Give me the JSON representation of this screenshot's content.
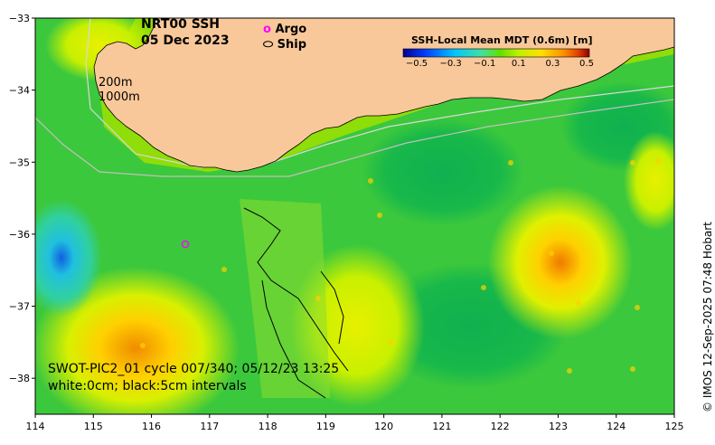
{
  "title": {
    "line1": "NRT00 SSH",
    "line2": "05 Dec 2023"
  },
  "legend": {
    "argo": {
      "symbol": "o",
      "label": "Argo",
      "color": "#ff00ff"
    },
    "ship": {
      "symbol": "⬭",
      "label": "Ship"
    }
  },
  "contour_labels": [
    "200m",
    "1000m"
  ],
  "colorbar": {
    "title": "SSH-Local Mean MDT (0.6m) [m]",
    "ticks": [
      "−0.5",
      "−0.3",
      "−0.1",
      "0.1",
      "0.3",
      "0.5"
    ],
    "colors": [
      "#000090",
      "#0040ff",
      "#00c8ff",
      "#40e0a0",
      "#60e000",
      "#c0f000",
      "#ffe000",
      "#ff9000",
      "#e04000",
      "#900000"
    ]
  },
  "swot_caption": {
    "line1": "SWOT-PIC2_01 cycle 007/340; 05/12/23 13:25",
    "line2": "white:0cm; black:5cm intervals"
  },
  "credit": "© IMOS 12-Sep-2025 07:48 Hobart",
  "axes": {
    "x_ticks": [
      "114",
      "115",
      "116",
      "117",
      "118",
      "119",
      "120",
      "121",
      "122",
      "123",
      "124",
      "125"
    ],
    "y_ticks": [
      "−33",
      "−34",
      "−35",
      "−36",
      "−37",
      "−38"
    ],
    "x_range": [
      114,
      125
    ],
    "y_range": [
      -38.5,
      -33
    ]
  },
  "colors": {
    "land": "#f9c89a",
    "ocean_base": "#3cc83c"
  }
}
